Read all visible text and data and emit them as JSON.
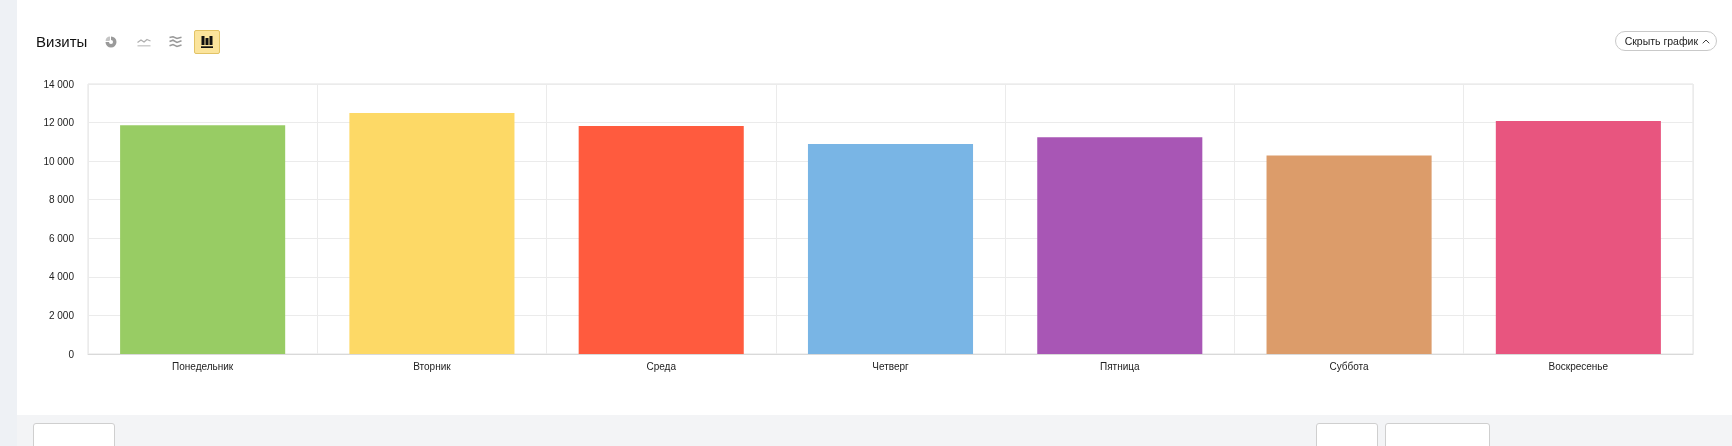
{
  "chart_data": {
    "type": "bar",
    "title": "Визиты",
    "categories": [
      "Понедельник",
      "Вторник",
      "Среда",
      "Четверг",
      "Пятница",
      "Суббота",
      "Воскресенье"
    ],
    "values": [
      11860,
      12500,
      11820,
      10890,
      11240,
      10290,
      12080
    ],
    "colors": [
      "#98cc64",
      "#fdd966",
      "#ff5b3e",
      "#79b5e5",
      "#a856b5",
      "#dc9c6a",
      "#e8557f"
    ],
    "ylim": [
      0,
      14000
    ],
    "yticks": [
      0,
      {
        "value": 2000,
        "label": "2 000"
      },
      {
        "value": 4000,
        "label": "4 000"
      },
      {
        "value": 6000,
        "label": "6 000"
      },
      {
        "value": 8000,
        "label": "8 000"
      },
      {
        "value": 10000,
        "label": "10 000"
      },
      {
        "value": 12000,
        "label": "12 000"
      },
      {
        "value": 14000,
        "label": "14 000"
      }
    ],
    "grid": true,
    "annotations": [
      "Скрыть график"
    ]
  }
}
